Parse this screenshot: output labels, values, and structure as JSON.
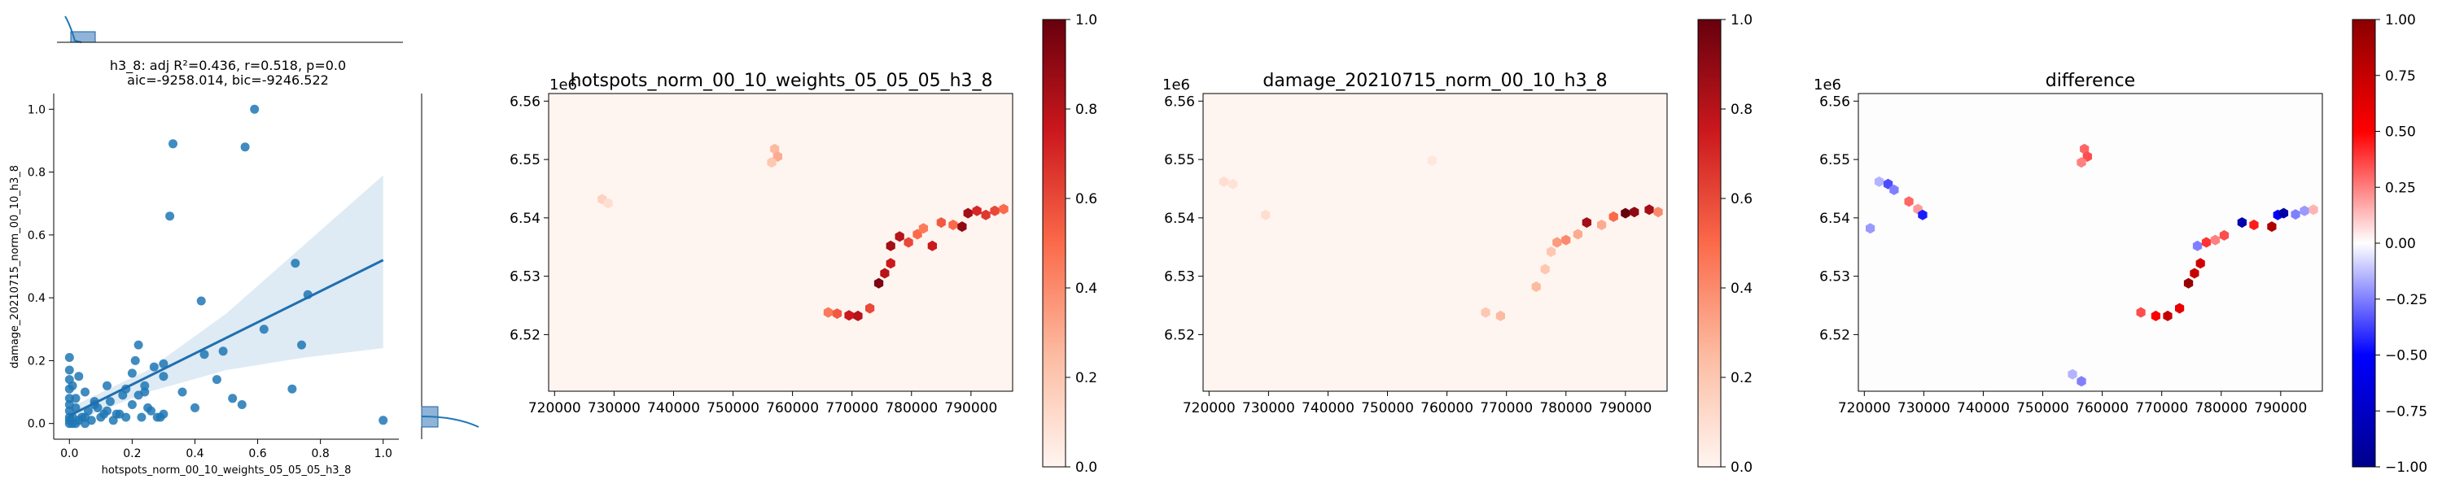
{
  "chart_data": [
    {
      "type": "scatter",
      "title": "h3_8: adj R²=0.436, r=0.518, p=0.0",
      "subtitle": "aic=-9258.014, bic=-9246.522",
      "xlabel": "hotspots_norm_00_10_weights_05_05_05_h3_8",
      "ylabel": "damage_20210715_norm_00_10_h3_8",
      "xlim": [
        -0.05,
        1.05
      ],
      "ylim": [
        -0.05,
        1.05
      ],
      "xticks": [
        "0.0",
        "0.2",
        "0.4",
        "0.6",
        "0.8",
        "1.0"
      ],
      "yticks": [
        "0.0",
        "0.2",
        "0.4",
        "0.6",
        "0.8",
        "1.0"
      ],
      "x": [
        0,
        0,
        0,
        0,
        0,
        0,
        0,
        0,
        0,
        0,
        0.01,
        0.01,
        0.02,
        0.02,
        0.03,
        0.04,
        0.05,
        0.06,
        0.07,
        0.08,
        0.1,
        0.12,
        0.14,
        0.15,
        0.17,
        0.18,
        0.2,
        0.22,
        0.23,
        0.24,
        0.26,
        0.28,
        0.3,
        0.01,
        0.02,
        0.03,
        0.05,
        0.08,
        0.11,
        0.13,
        0.16,
        0.18,
        0.2,
        0.22,
        0.24,
        0.27,
        0.29,
        0.3,
        0.32,
        0.33,
        0.42,
        0.56,
        0.59,
        0.43,
        0.36,
        0.49,
        0.52,
        0.72,
        0.76,
        0.62,
        0.71,
        0.74,
        1.0,
        0.4,
        0.47,
        0.55,
        0.3,
        0.25,
        0.21,
        0.12,
        0.09,
        0.05
      ],
      "y": [
        0,
        0.01,
        0.02,
        0.04,
        0.06,
        0.08,
        0.11,
        0.14,
        0.17,
        0.21,
        0,
        0.02,
        0,
        0.05,
        0.01,
        0.02,
        0,
        0.04,
        0.01,
        0.07,
        0.02,
        0.04,
        0.01,
        0.03,
        0.09,
        0.02,
        0.06,
        0.25,
        0.02,
        0.1,
        0.04,
        0.02,
        0.19,
        0.12,
        0.08,
        0.15,
        0.1,
        0.06,
        0.03,
        0.07,
        0.03,
        0.11,
        0.16,
        0.09,
        0.12,
        0.18,
        0.02,
        0.15,
        0.66,
        0.89,
        0.39,
        0.88,
        1.0,
        0.22,
        0.1,
        0.23,
        0.08,
        0.51,
        0.41,
        0.3,
        0.11,
        0.25,
        0.01,
        0.05,
        0.14,
        0.06,
        0.03,
        0.05,
        0.2,
        0.12,
        0.05,
        0.02
      ],
      "regression_line": {
        "x": [
          0,
          1.0
        ],
        "y": [
          0.025,
          0.52
        ]
      },
      "confidence_band": {
        "x": [
          0,
          0.25,
          0.5,
          0.75,
          1.0
        ],
        "upper": [
          0.05,
          0.17,
          0.35,
          0.57,
          0.79
        ],
        "lower": [
          0.0,
          0.1,
          0.17,
          0.21,
          0.24
        ]
      },
      "marginal_hist": {
        "bins": [
          0.0,
          0.1
        ],
        "density": "top-left"
      }
    },
    {
      "type": "heatmap",
      "title": "hotspots_norm_00_10_weights_05_05_05_h3_8",
      "offset_label": "1e6",
      "xticks": [
        "720000",
        "730000",
        "740000",
        "750000",
        "760000",
        "770000",
        "780000",
        "790000"
      ],
      "yticks": [
        "6.52",
        "6.53",
        "6.54",
        "6.55",
        "6.56"
      ],
      "xlim": [
        719000,
        797000
      ],
      "ylim": [
        6.5103,
        6.5613
      ],
      "colormap": "Reds",
      "colorbar": {
        "min": 0.0,
        "max": 1.0,
        "ticks": [
          "0.0",
          "0.2",
          "0.4",
          "0.6",
          "0.8",
          "1.0"
        ]
      },
      "points": [
        [
          757000,
          6.5518,
          0.25
        ],
        [
          757500,
          6.5505,
          0.3
        ],
        [
          756500,
          6.5495,
          0.2
        ],
        [
          728000,
          6.5432,
          0.15
        ],
        [
          729000,
          6.5425,
          0.1
        ],
        [
          766000,
          6.5238,
          0.45
        ],
        [
          767500,
          6.5236,
          0.55
        ],
        [
          769500,
          6.5233,
          0.75
        ],
        [
          771000,
          6.5232,
          0.8
        ],
        [
          773000,
          6.5245,
          0.6
        ],
        [
          774500,
          6.5288,
          0.95
        ],
        [
          775500,
          6.5305,
          0.8
        ],
        [
          776500,
          6.5322,
          0.75
        ],
        [
          776500,
          6.5352,
          0.85
        ],
        [
          778000,
          6.5368,
          0.8
        ],
        [
          779500,
          6.5358,
          0.6
        ],
        [
          781000,
          6.5372,
          0.5
        ],
        [
          782000,
          6.5382,
          0.45
        ],
        [
          783500,
          6.5352,
          0.75
        ],
        [
          785000,
          6.5392,
          0.55
        ],
        [
          787000,
          6.5388,
          0.5
        ],
        [
          788500,
          6.5385,
          0.9
        ],
        [
          789500,
          6.5408,
          0.85
        ],
        [
          791000,
          6.5412,
          0.7
        ],
        [
          792500,
          6.5405,
          0.65
        ],
        [
          794000,
          6.5412,
          0.6
        ],
        [
          795500,
          6.5415,
          0.5
        ]
      ]
    },
    {
      "type": "heatmap",
      "title": "damage_20210715_norm_00_10_h3_8",
      "offset_label": "1e6",
      "xticks": [
        "720000",
        "730000",
        "740000",
        "750000",
        "760000",
        "770000",
        "780000",
        "790000"
      ],
      "yticks": [
        "6.52",
        "6.53",
        "6.54",
        "6.55",
        "6.56"
      ],
      "xlim": [
        719000,
        797000
      ],
      "ylim": [
        6.5103,
        6.5613
      ],
      "colormap": "Reds",
      "colorbar": {
        "min": 0.0,
        "max": 1.0,
        "ticks": [
          "0.0",
          "0.2",
          "0.4",
          "0.6",
          "0.8",
          "1.0"
        ]
      },
      "points": [
        [
          722500,
          6.5462,
          0.1
        ],
        [
          724000,
          6.5458,
          0.08
        ],
        [
          729500,
          6.5405,
          0.1
        ],
        [
          757500,
          6.5498,
          0.06
        ],
        [
          775000,
          6.5282,
          0.25
        ],
        [
          776500,
          6.5312,
          0.2
        ],
        [
          777500,
          6.5342,
          0.2
        ],
        [
          778500,
          6.5358,
          0.35
        ],
        [
          780000,
          6.5362,
          0.4
        ],
        [
          782000,
          6.5372,
          0.3
        ],
        [
          783500,
          6.5392,
          0.85
        ],
        [
          786000,
          6.5388,
          0.3
        ],
        [
          788000,
          6.5402,
          0.5
        ],
        [
          790000,
          6.5408,
          1.0
        ],
        [
          791500,
          6.541,
          0.9
        ],
        [
          794000,
          6.5414,
          0.85
        ],
        [
          795500,
          6.541,
          0.4
        ],
        [
          766500,
          6.5238,
          0.2
        ],
        [
          769000,
          6.5232,
          0.25
        ]
      ]
    },
    {
      "type": "heatmap",
      "title": "difference",
      "offset_label": "1e6",
      "xticks": [
        "720000",
        "730000",
        "740000",
        "750000",
        "760000",
        "770000",
        "780000",
        "790000"
      ],
      "yticks": [
        "6.52",
        "6.53",
        "6.54",
        "6.55",
        "6.56"
      ],
      "xlim": [
        719000,
        797000
      ],
      "ylim": [
        6.5103,
        6.5613
      ],
      "colormap": "bwr",
      "colorbar": {
        "min": -1.0,
        "max": 1.0,
        "ticks": [
          "1.00",
          "0.75",
          "0.50",
          "0.25",
          "0.00",
          "−0.25",
          "−0.50",
          "−0.75",
          "−1.00"
        ]
      },
      "points": [
        [
          722500,
          6.5462,
          -0.15
        ],
        [
          724000,
          6.5458,
          -0.35
        ],
        [
          725000,
          6.5448,
          -0.25
        ],
        [
          727500,
          6.5428,
          0.3
        ],
        [
          729000,
          6.5415,
          0.2
        ],
        [
          729800,
          6.5405,
          -0.45
        ],
        [
          721000,
          6.5382,
          -0.2
        ],
        [
          757000,
          6.5518,
          0.3
        ],
        [
          757500,
          6.5505,
          0.35
        ],
        [
          756500,
          6.5495,
          0.25
        ],
        [
          766500,
          6.5238,
          0.35
        ],
        [
          769000,
          6.5232,
          0.5
        ],
        [
          771000,
          6.5232,
          0.75
        ],
        [
          773000,
          6.5245,
          0.6
        ],
        [
          774500,
          6.5288,
          0.95
        ],
        [
          775500,
          6.5305,
          0.75
        ],
        [
          776500,
          6.5322,
          0.7
        ],
        [
          776000,
          6.5352,
          -0.25
        ],
        [
          777500,
          6.5358,
          0.4
        ],
        [
          779000,
          6.5362,
          0.25
        ],
        [
          780500,
          6.537,
          0.35
        ],
        [
          783500,
          6.5392,
          -0.85
        ],
        [
          785500,
          6.5388,
          0.45
        ],
        [
          788500,
          6.5385,
          0.85
        ],
        [
          789500,
          6.5405,
          -0.5
        ],
        [
          790500,
          6.5408,
          -0.9
        ],
        [
          792500,
          6.5406,
          -0.25
        ],
        [
          794000,
          6.5412,
          -0.2
        ],
        [
          795500,
          6.5414,
          0.15
        ],
        [
          756500,
          6.512,
          -0.25
        ],
        [
          755000,
          6.5132,
          -0.15
        ]
      ]
    }
  ]
}
